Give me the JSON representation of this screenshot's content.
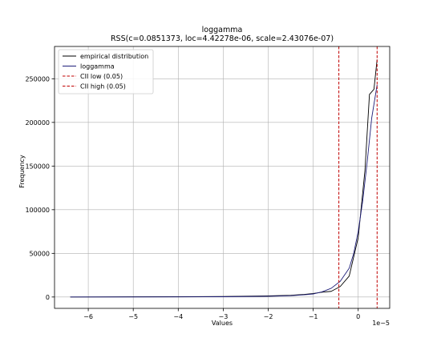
{
  "chart_data": {
    "type": "line",
    "title": "loggamma",
    "subtitle": "RSS(c=0.0851373, loc=4.42278e-06, scale=2.43076e-07)",
    "xlabel": "Values",
    "ylabel": "Frequency",
    "x_offset_label": "1e−5",
    "xlim": [
      -6.75,
      0.7
    ],
    "ylim": [
      -13000,
      287000
    ],
    "xticks": [
      -6,
      -5,
      -4,
      -3,
      -2,
      -1,
      0
    ],
    "xtick_labels": [
      "−6",
      "−5",
      "−4",
      "−3",
      "−2",
      "−1",
      "0"
    ],
    "yticks": [
      0,
      50000,
      100000,
      150000,
      200000,
      250000
    ],
    "ytick_labels": [
      "0",
      "50000",
      "100000",
      "150000",
      "200000",
      "250000"
    ],
    "grid": true,
    "legend_position": "top-left",
    "series": [
      {
        "name": "empirical distribution",
        "color": "#000000",
        "style": "solid",
        "x": [
          -6.4,
          -5.0,
          -4.0,
          -3.0,
          -2.5,
          -2.0,
          -1.5,
          -1.2,
          -1.0,
          -0.8,
          -0.6,
          -0.4,
          -0.2,
          0.0,
          0.15,
          0.25,
          0.35,
          0.42
        ],
        "y": [
          0,
          200,
          400,
          600,
          900,
          1300,
          2000,
          3000,
          4000,
          5500,
          6500,
          12000,
          24000,
          68000,
          145000,
          232000,
          238000,
          272000
        ]
      },
      {
        "name": "loggamma",
        "color": "#1f1f7a",
        "style": "solid",
        "x": [
          -6.4,
          -5.0,
          -4.0,
          -3.0,
          -2.0,
          -1.5,
          -1.2,
          -1.0,
          -0.8,
          -0.6,
          -0.4,
          -0.2,
          -0.1,
          0.0,
          0.1,
          0.2,
          0.3,
          0.42
        ],
        "y": [
          0,
          50,
          100,
          300,
          800,
          1500,
          2500,
          3500,
          6000,
          10000,
          18000,
          33000,
          50000,
          75000,
          110000,
          155000,
          205000,
          243000
        ]
      }
    ],
    "vlines": [
      {
        "name": "CII low (0.05)",
        "x": -0.43,
        "color": "#c00000",
        "style": "dashed"
      },
      {
        "name": "CII high (0.05)",
        "x": 0.42,
        "color": "#c00000",
        "style": "dashed"
      }
    ]
  }
}
